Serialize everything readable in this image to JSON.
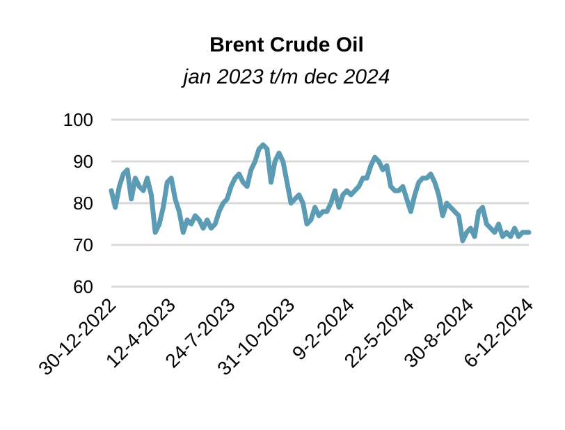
{
  "chart_data": {
    "type": "line",
    "title": "Brent Crude Oil",
    "subtitle": "jan 2023 t/m dec 2024",
    "xlabel": "",
    "ylabel": "",
    "ylim": [
      60,
      100
    ],
    "yticks": [
      60,
      70,
      80,
      90,
      100
    ],
    "xticks": [
      "30-12-2022",
      "12-4-2023",
      "24-7-2023",
      "31-10-2023",
      "9-2-2024",
      "22-5-2024",
      "30-8-2024",
      "6-12-2024"
    ],
    "grid": true,
    "legend": "none",
    "color": "#5b9bb3",
    "series": [
      {
        "x": [
          "2022-12-30",
          "2023-01-06",
          "2023-01-13",
          "2023-01-20",
          "2023-01-27",
          "2023-02-03",
          "2023-02-10",
          "2023-02-17",
          "2023-02-24",
          "2023-03-03",
          "2023-03-10",
          "2023-03-17",
          "2023-03-24",
          "2023-03-31",
          "2023-04-07",
          "2023-04-14",
          "2023-04-21",
          "2023-04-28",
          "2023-05-05",
          "2023-05-12",
          "2023-05-19",
          "2023-05-26",
          "2023-06-02",
          "2023-06-09",
          "2023-06-16",
          "2023-06-23",
          "2023-06-30",
          "2023-07-07",
          "2023-07-14",
          "2023-07-21",
          "2023-07-28",
          "2023-08-04",
          "2023-08-11",
          "2023-08-18",
          "2023-08-25",
          "2023-09-01",
          "2023-09-08",
          "2023-09-15",
          "2023-09-22",
          "2023-09-29",
          "2023-10-06",
          "2023-10-13",
          "2023-10-20",
          "2023-10-27",
          "2023-11-03",
          "2023-11-10",
          "2023-11-17",
          "2023-11-24",
          "2023-12-01",
          "2023-12-08",
          "2023-12-15",
          "2023-12-22",
          "2023-12-29",
          "2024-01-05",
          "2024-01-12",
          "2024-01-19",
          "2024-01-26",
          "2024-02-02",
          "2024-02-09",
          "2024-02-16",
          "2024-02-23",
          "2024-03-01",
          "2024-03-08",
          "2024-03-15",
          "2024-03-22",
          "2024-03-29",
          "2024-04-05",
          "2024-04-12",
          "2024-04-19",
          "2024-04-26",
          "2024-05-03",
          "2024-05-10",
          "2024-05-17",
          "2024-05-24",
          "2024-05-31",
          "2024-06-07",
          "2024-06-14",
          "2024-06-21",
          "2024-06-28",
          "2024-07-05",
          "2024-07-12",
          "2024-07-19",
          "2024-07-26",
          "2024-08-02",
          "2024-08-09",
          "2024-08-16",
          "2024-08-23",
          "2024-08-30",
          "2024-09-06",
          "2024-09-13",
          "2024-09-20",
          "2024-09-27",
          "2024-10-04",
          "2024-10-11",
          "2024-10-18",
          "2024-10-25",
          "2024-11-01",
          "2024-11-08",
          "2024-11-15",
          "2024-11-22",
          "2024-11-29",
          "2024-12-06",
          "2024-12-13",
          "2024-12-20",
          "2024-12-31"
        ],
        "values": [
          83,
          79,
          84,
          87,
          88,
          81,
          86,
          84,
          83,
          86,
          82,
          73,
          75,
          79,
          85,
          86,
          81,
          78,
          73,
          76,
          75,
          77,
          76,
          74,
          76,
          74,
          75,
          78,
          80,
          81,
          84,
          86,
          87,
          85,
          84,
          88,
          90,
          93,
          94,
          93,
          85,
          90,
          92,
          90,
          85,
          80,
          81,
          82,
          80,
          75,
          76,
          79,
          77,
          78,
          78,
          80,
          83,
          79,
          82,
          83,
          82,
          83,
          84,
          86,
          86,
          89,
          91,
          90,
          88,
          89,
          84,
          83,
          83,
          84,
          81,
          78,
          82,
          85,
          86,
          86,
          87,
          85,
          82,
          77,
          80,
          79,
          78,
          77,
          71,
          73,
          74,
          72,
          78,
          79,
          75,
          74,
          73,
          75,
          72,
          73,
          72,
          74,
          72,
          73,
          73
        ]
      }
    ]
  }
}
